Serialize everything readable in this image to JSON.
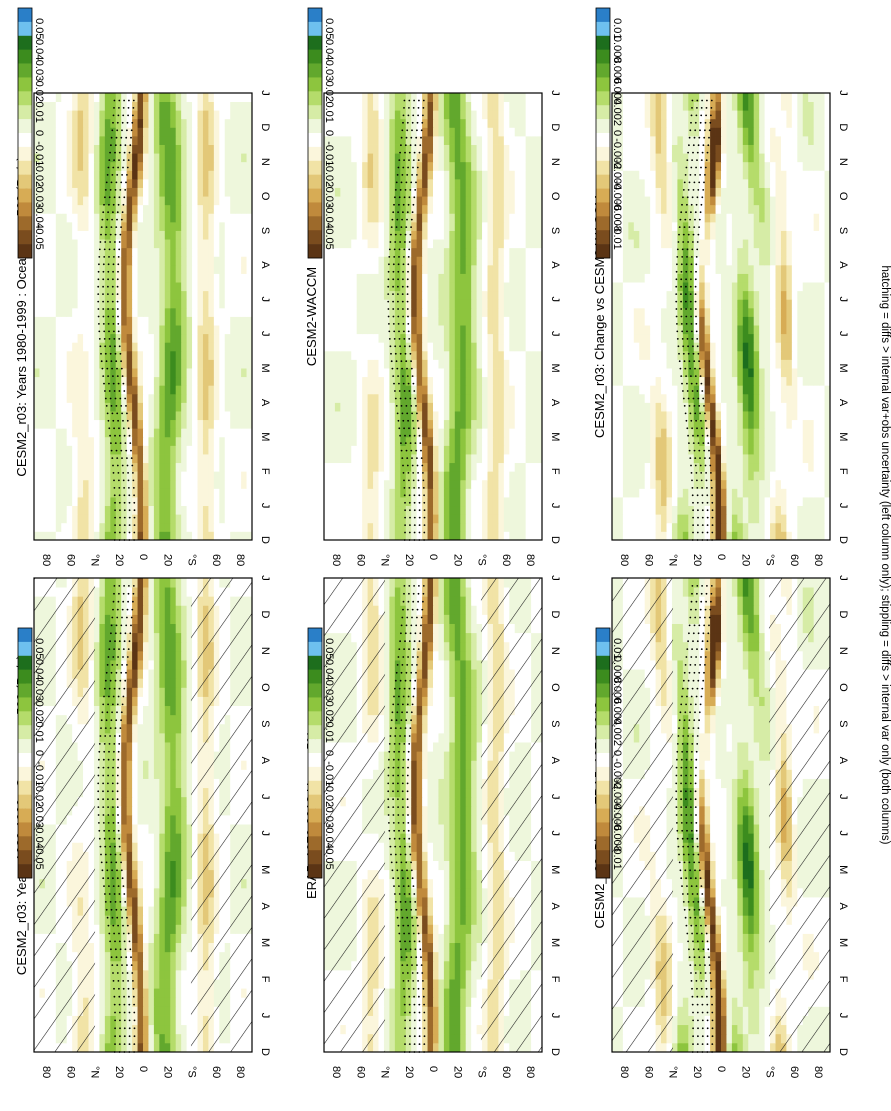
{
  "figure": {
    "footer": "hatching = diffs > internal var+obs uncertainty (left column only); stippling = diffs > internal var only (both columns)"
  },
  "palettes": {
    "field": [
      "#2a7fc8",
      "#6ec0ef",
      "#1d6e1d",
      "#3c8c1e",
      "#62a82d",
      "#8dc53e",
      "#b5dc6b",
      "#d6eca6",
      "#eef7dc",
      "#ffffff",
      "#fbf6dc",
      "#f1e3a6",
      "#e3c878",
      "#d7ac55",
      "#c08a3c",
      "#9d6a2b",
      "#7a4c1e",
      "#5b3414"
    ],
    "hatch": "#1a1a1a",
    "stipple": "#000000"
  },
  "chart_data": [
    {
      "id": "a",
      "type": "heatmap",
      "title": "CESM2_r03: Years 1980-1999 : Ocean : wap500 (Pa/s)",
      "xlabel": "",
      "ylabel": "",
      "x_tick_labels": [
        "D",
        "J",
        "F",
        "M",
        "A",
        "M",
        "J",
        "J",
        "A",
        "S",
        "O",
        "N",
        "D",
        "J"
      ],
      "y_tick_labels": [
        "80",
        "60",
        "°N",
        "20",
        "0",
        "20",
        "°S",
        "60",
        "80"
      ],
      "y_range": [
        -90,
        90
      ],
      "colorbar_labels": [
        "0.05",
        "0.04",
        "0.03",
        "0.02",
        "0.01",
        "0",
        "-0.01",
        "-0.02",
        "-0.03",
        "-0.04",
        "-0.05"
      ],
      "scale": 1,
      "hatching": true,
      "stippling": true
    },
    {
      "id": "b",
      "type": "heatmap",
      "title": "ERA5: 1979-2018 Uncer=5%",
      "xlabel": "",
      "ylabel": "",
      "x_tick_labels": [
        "D",
        "J",
        "F",
        "M",
        "A",
        "M",
        "J",
        "J",
        "A",
        "S",
        "O",
        "N",
        "D",
        "J"
      ],
      "y_tick_labels": [
        "80",
        "60",
        "°N",
        "20",
        "0",
        "20",
        "°S",
        "60",
        "80"
      ],
      "y_range": [
        -90,
        90
      ],
      "colorbar_labels": [
        "0.05",
        "0.04",
        "0.03",
        "0.02",
        "0.01",
        "0",
        "-0.01",
        "-0.02",
        "-0.03",
        "-0.04",
        "-0.05"
      ],
      "scale": 1,
      "hatching": true,
      "stippling": true
    },
    {
      "id": "c",
      "type": "heatmap",
      "title": "CESM2_r03: Bias vs ERA5: 1979-2018",
      "xlabel": "",
      "ylabel": "",
      "x_tick_labels": [
        "D",
        "J",
        "F",
        "M",
        "A",
        "M",
        "J",
        "J",
        "A",
        "S",
        "O",
        "N",
        "D",
        "J"
      ],
      "y_tick_labels": [
        "80",
        "60",
        "°N",
        "20",
        "0",
        "20",
        "°S",
        "60",
        "80"
      ],
      "y_range": [
        -90,
        90
      ],
      "colorbar_labels": [
        "0.01",
        "0.008",
        "0.006",
        "0.004",
        "0.002",
        "0",
        "-0.002",
        "-0.004",
        "-0.006",
        "-0.008",
        "-0.01"
      ],
      "scale": 0.2,
      "hatching": true,
      "stippling": true
    },
    {
      "id": "d",
      "type": "heatmap",
      "title": "CESM2_r03: Years 1980-1999 : Ocean : wap500 (Pa/s)",
      "xlabel": "",
      "ylabel": "",
      "x_tick_labels": [
        "D",
        "J",
        "F",
        "M",
        "A",
        "M",
        "J",
        "J",
        "A",
        "S",
        "O",
        "N",
        "D",
        "J"
      ],
      "y_tick_labels": [
        "80",
        "60",
        "°N",
        "20",
        "0",
        "20",
        "°S",
        "60",
        "80"
      ],
      "y_range": [
        -90,
        90
      ],
      "colorbar_labels": [
        "0.05",
        "0.04",
        "0.03",
        "0.02",
        "0.01",
        "0",
        "-0.01",
        "-0.02",
        "-0.03",
        "-0.04",
        "-0.05"
      ],
      "scale": 1,
      "hatching": false,
      "stippling": true
    },
    {
      "id": "e",
      "type": "heatmap",
      "title": "CESM2-WACCM",
      "xlabel": "",
      "ylabel": "",
      "x_tick_labels": [
        "D",
        "J",
        "F",
        "M",
        "A",
        "M",
        "J",
        "J",
        "A",
        "S",
        "O",
        "N",
        "D",
        "J"
      ],
      "y_tick_labels": [
        "80",
        "60",
        "°N",
        "20",
        "0",
        "20",
        "°S",
        "60",
        "80"
      ],
      "y_range": [
        -90,
        90
      ],
      "colorbar_labels": [
        "0.05",
        "0.04",
        "0.03",
        "0.02",
        "0.01",
        "0",
        "-0.01",
        "-0.02",
        "-0.03",
        "-0.04",
        "-0.05"
      ],
      "scale": 1,
      "hatching": false,
      "stippling": true
    },
    {
      "id": "f",
      "type": "heatmap",
      "title": "CESM2_r03: Change vs CESM2-WACCM",
      "xlabel": "",
      "ylabel": "",
      "x_tick_labels": [
        "D",
        "J",
        "F",
        "M",
        "A",
        "M",
        "J",
        "J",
        "A",
        "S",
        "O",
        "N",
        "D",
        "J"
      ],
      "y_tick_labels": [
        "80",
        "60",
        "°N",
        "20",
        "0",
        "20",
        "°S",
        "60",
        "80"
      ],
      "y_range": [
        -90,
        90
      ],
      "colorbar_labels": [
        "0.01",
        "0.008",
        "0.006",
        "0.004",
        "0.002",
        "0",
        "-0.002",
        "-0.004",
        "-0.006",
        "-0.008",
        "-0.01"
      ],
      "scale": 0.2,
      "hatching": false,
      "stippling": true
    }
  ]
}
